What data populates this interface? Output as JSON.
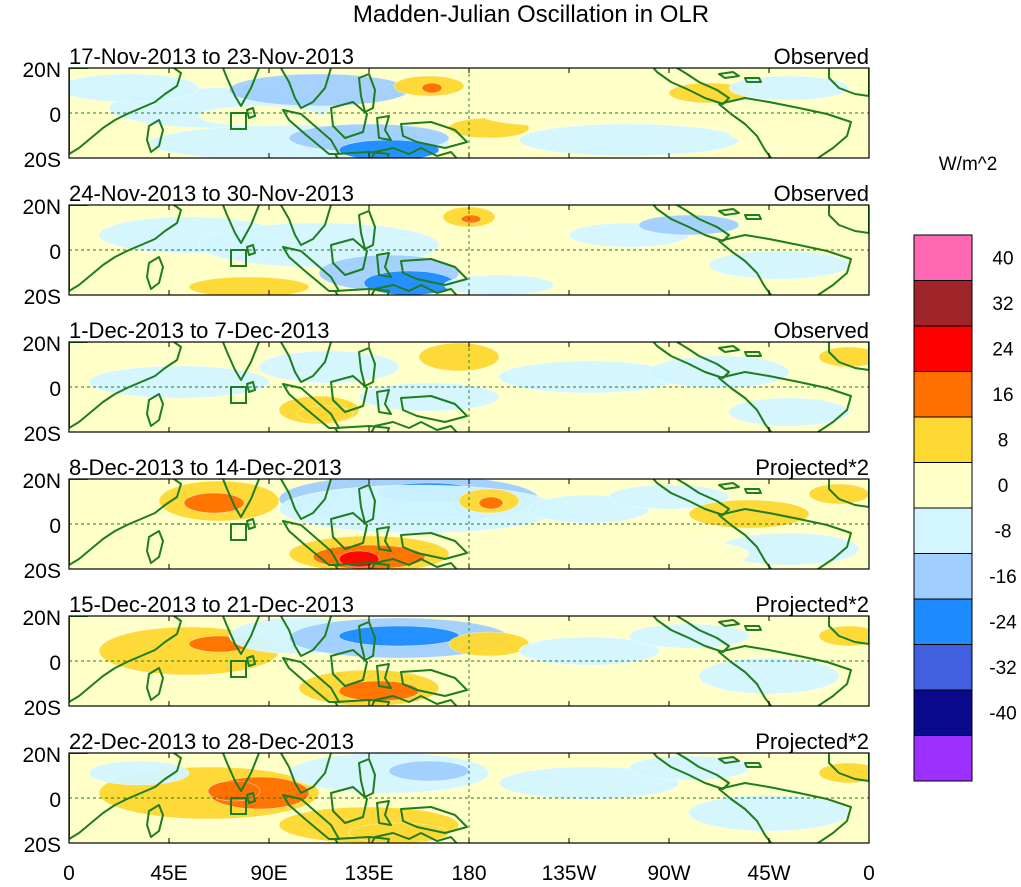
{
  "title": "Madden-Julian Oscillation in OLR",
  "units": "W/m^2",
  "lat_labels": [
    "20N",
    "0",
    "20S"
  ],
  "lon_labels": [
    "0",
    "45E",
    "90E",
    "135E",
    "180",
    "135W",
    "90W",
    "45W",
    "0"
  ],
  "panels": [
    {
      "date_range": "17-Nov-2013 to 23-Nov-2013",
      "type": "Observed"
    },
    {
      "date_range": "24-Nov-2013 to 30-Nov-2013",
      "type": "Observed"
    },
    {
      "date_range": "1-Dec-2013 to 7-Dec-2013",
      "type": "Observed"
    },
    {
      "date_range": "8-Dec-2013 to 14-Dec-2013",
      "type": "Projected*2"
    },
    {
      "date_range": "15-Dec-2013 to 21-Dec-2013",
      "type": "Projected*2"
    },
    {
      "date_range": "22-Dec-2013 to 28-Dec-2013",
      "type": "Projected*2"
    }
  ],
  "colorbar": {
    "colors": [
      "#ff69b4",
      "#a0252a",
      "#ff0000",
      "#ff7000",
      "#fed832",
      "#ffffc8",
      "#d2f5ff",
      "#a0cfff",
      "#1e8cff",
      "#4060e0",
      "#0a0a8c",
      "#9b30ff"
    ],
    "labels": [
      "40",
      "32",
      "24",
      "16",
      "8",
      "0",
      "-8",
      "-16",
      "-24",
      "-32",
      "-40"
    ]
  }
}
